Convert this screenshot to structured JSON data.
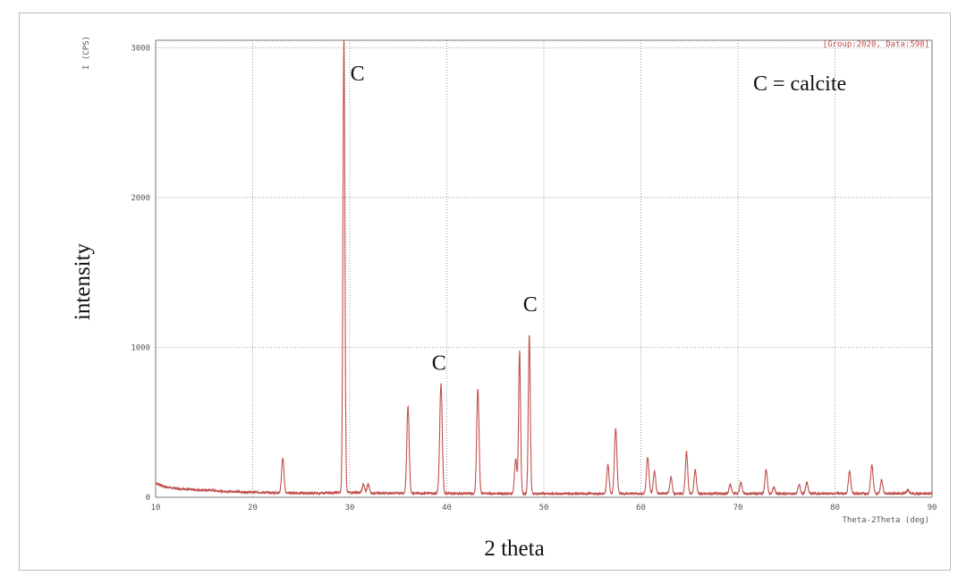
{
  "header": {
    "unit_label": "I (CPS)",
    "group_tag": "[Group:2020, Data:590]"
  },
  "legend_note": "C = calcite",
  "axis_labels": {
    "y_title": "intensity",
    "x_title": "2 theta",
    "x_unit": "Theta-2Theta (deg)"
  },
  "colors": {
    "pattern": "#c0504d",
    "grid": "#9a9a9a"
  },
  "chart_data": {
    "type": "line",
    "xlim": [
      10,
      90
    ],
    "ylim": [
      0,
      3050
    ],
    "x_ticks": [
      "10",
      "20",
      "30",
      "40",
      "50",
      "60",
      "70",
      "80",
      "90"
    ],
    "y_ticks": [
      "0",
      "1000",
      "2000",
      "3000"
    ],
    "grid": true,
    "series": [
      {
        "baseline": [
          [
            10,
            95
          ],
          [
            11,
            70
          ],
          [
            12,
            60
          ],
          [
            13,
            55
          ],
          [
            14,
            50
          ],
          [
            15,
            48
          ],
          [
            16,
            45
          ],
          [
            17,
            40
          ],
          [
            18,
            38
          ],
          [
            19,
            35
          ],
          [
            20,
            34
          ],
          [
            21,
            32
          ],
          [
            22,
            30
          ],
          [
            23,
            30
          ],
          [
            24,
            28
          ],
          [
            25,
            28
          ],
          [
            26,
            27
          ],
          [
            27,
            28
          ],
          [
            28,
            30
          ],
          [
            29,
            32
          ],
          [
            30,
            32
          ],
          [
            31,
            30
          ],
          [
            32,
            28
          ],
          [
            35,
            28
          ],
          [
            40,
            26
          ],
          [
            45,
            25
          ],
          [
            50,
            24
          ],
          [
            55,
            24
          ],
          [
            60,
            25
          ],
          [
            65,
            24
          ],
          [
            70,
            25
          ],
          [
            75,
            24
          ],
          [
            80,
            25
          ],
          [
            85,
            25
          ],
          [
            90,
            25
          ]
        ],
        "peaks": [
          {
            "x": 23.1,
            "y": 230,
            "w": 0.12
          },
          {
            "x": 29.4,
            "y": 3050,
            "w": 0.1
          },
          {
            "x": 31.4,
            "y": 55,
            "w": 0.12
          },
          {
            "x": 31.9,
            "y": 60,
            "w": 0.12
          },
          {
            "x": 36.0,
            "y": 580,
            "w": 0.12
          },
          {
            "x": 39.4,
            "y": 730,
            "w": 0.13
          },
          {
            "x": 43.2,
            "y": 700,
            "w": 0.12
          },
          {
            "x": 47.1,
            "y": 230,
            "w": 0.12
          },
          {
            "x": 47.5,
            "y": 950,
            "w": 0.1
          },
          {
            "x": 48.5,
            "y": 1060,
            "w": 0.1
          },
          {
            "x": 56.6,
            "y": 190,
            "w": 0.12
          },
          {
            "x": 57.4,
            "y": 430,
            "w": 0.13
          },
          {
            "x": 60.7,
            "y": 240,
            "w": 0.13
          },
          {
            "x": 61.4,
            "y": 150,
            "w": 0.12
          },
          {
            "x": 63.1,
            "y": 110,
            "w": 0.12
          },
          {
            "x": 64.7,
            "y": 280,
            "w": 0.12
          },
          {
            "x": 65.6,
            "y": 160,
            "w": 0.12
          },
          {
            "x": 69.2,
            "y": 60,
            "w": 0.12
          },
          {
            "x": 70.3,
            "y": 75,
            "w": 0.12
          },
          {
            "x": 72.9,
            "y": 160,
            "w": 0.12
          },
          {
            "x": 73.7,
            "y": 40,
            "w": 0.12
          },
          {
            "x": 76.3,
            "y": 60,
            "w": 0.12
          },
          {
            "x": 77.1,
            "y": 75,
            "w": 0.12
          },
          {
            "x": 81.5,
            "y": 150,
            "w": 0.12
          },
          {
            "x": 83.8,
            "y": 190,
            "w": 0.13
          },
          {
            "x": 84.8,
            "y": 90,
            "w": 0.12
          },
          {
            "x": 87.5,
            "y": 25,
            "w": 0.12
          }
        ]
      }
    ],
    "annotations": [
      {
        "text": "C",
        "x": 30.8,
        "y": 2780
      },
      {
        "text": "C",
        "x": 39.2,
        "y": 850
      },
      {
        "text": "C",
        "x": 48.6,
        "y": 1240
      }
    ]
  }
}
